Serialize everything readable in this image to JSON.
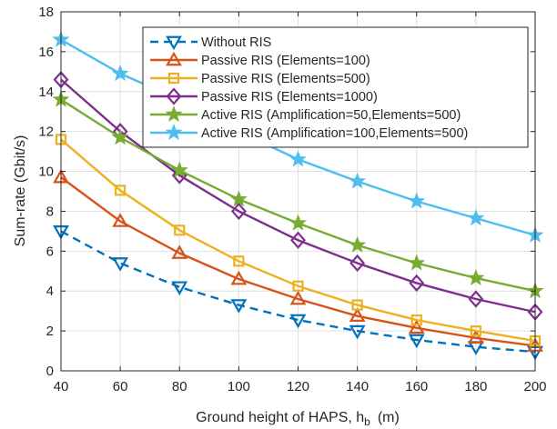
{
  "chart_data": {
    "type": "line",
    "xlabel": "Ground height of HAPS, h",
    "xlabel_sub": "b",
    "xlabel_unit": "(m)",
    "ylabel": "Sum-rate (Gbit/s)",
    "xlim": [
      40,
      200
    ],
    "ylim": [
      0,
      18
    ],
    "xticks": [
      40,
      60,
      80,
      100,
      120,
      140,
      160,
      180,
      200
    ],
    "yticks": [
      0,
      2,
      4,
      6,
      8,
      10,
      12,
      14,
      16,
      18
    ],
    "grid": true,
    "legend_position": "top-right",
    "x": [
      40,
      60,
      80,
      100,
      120,
      140,
      160,
      180,
      200
    ],
    "series": [
      {
        "name": "Without RIS",
        "color": "#0072BD",
        "marker": "triangle-down",
        "dashed": true,
        "values": [
          7.0,
          5.4,
          4.2,
          3.3,
          2.55,
          2.0,
          1.55,
          1.2,
          0.95
        ]
      },
      {
        "name": "Passive RIS (Elements=100)",
        "color": "#D95319",
        "marker": "triangle-up",
        "dashed": false,
        "values": [
          9.7,
          7.5,
          5.9,
          4.6,
          3.6,
          2.75,
          2.15,
          1.65,
          1.25
        ]
      },
      {
        "name": "Passive RIS (Elements=500)",
        "color": "#EDB120",
        "marker": "square",
        "dashed": false,
        "values": [
          11.6,
          9.05,
          7.05,
          5.5,
          4.25,
          3.3,
          2.55,
          2.0,
          1.5
        ]
      },
      {
        "name": "Passive RIS (Elements=1000)",
        "color": "#7E2F8E",
        "marker": "diamond",
        "dashed": false,
        "values": [
          14.6,
          12.0,
          9.8,
          8.0,
          6.55,
          5.4,
          4.4,
          3.6,
          2.95
        ]
      },
      {
        "name": "Active RIS (Amplification=50,Elements=500)",
        "color": "#77AC30",
        "marker": "star",
        "dashed": false,
        "values": [
          13.6,
          11.7,
          10.05,
          8.6,
          7.4,
          6.3,
          5.4,
          4.65,
          4.0
        ]
      },
      {
        "name": "Active RIS (Amplification=100,Elements=500)",
        "color": "#4DBEEE",
        "marker": "star",
        "dashed": false,
        "values": [
          16.6,
          14.9,
          13.6,
          12.0,
          10.6,
          9.5,
          8.5,
          7.65,
          6.8
        ]
      }
    ]
  }
}
